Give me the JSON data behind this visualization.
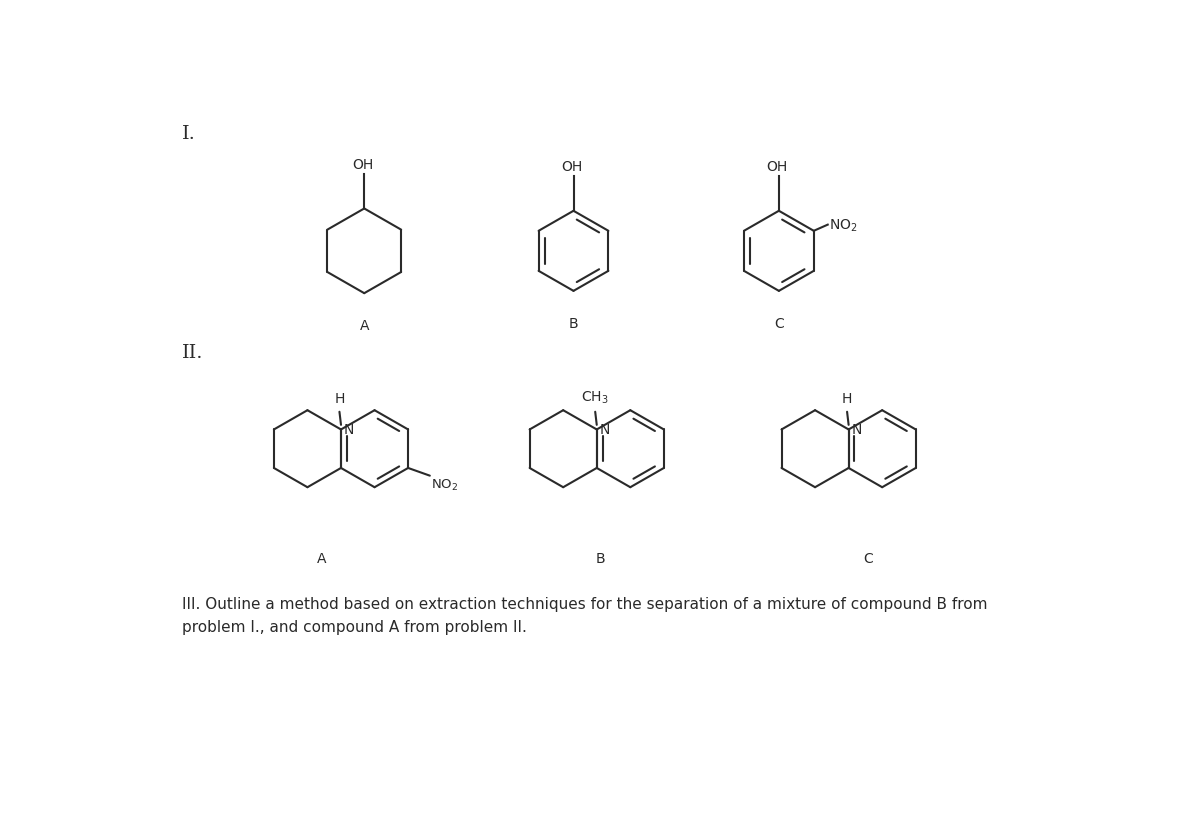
{
  "background_color": "#ffffff",
  "text_color": "#2a2a2a",
  "line_color": "#2a2a2a",
  "line_width": 1.5,
  "fig_width": 11.78,
  "fig_height": 8.28,
  "title_I": "I.",
  "title_II": "II.",
  "label_A1": "A",
  "label_B1": "B",
  "label_C1": "C",
  "label_A2": "A",
  "label_B2": "B",
  "label_C2": "C",
  "text_III": "III. Outline a method based on extraction techniques for the separation of a mixture of compound B from\nproblem I., and compound A from problem II.",
  "font_size_roman": 14,
  "font_size_label": 10,
  "font_size_text": 11,
  "font_size_chem": 10,
  "font_size_small": 9
}
